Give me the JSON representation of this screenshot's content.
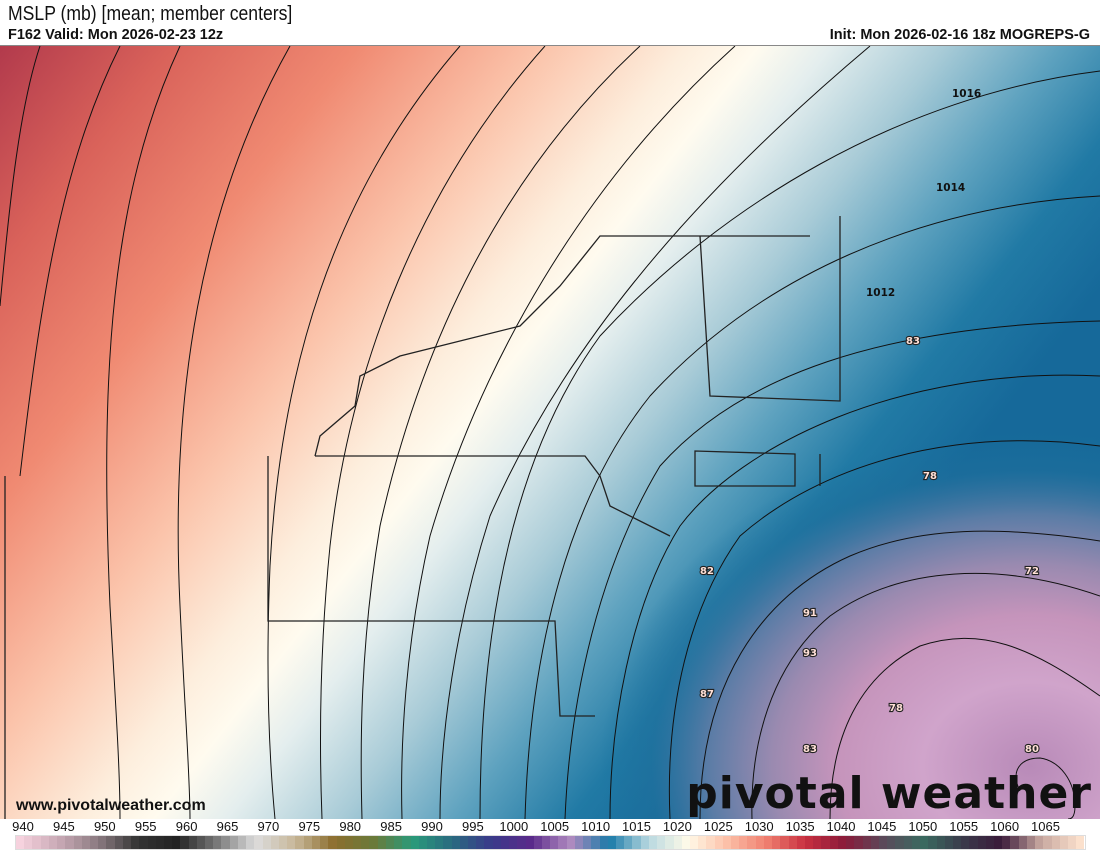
{
  "header": {
    "title": "MSLP (mb) [mean; member centers]",
    "valid": "F162 Valid: Mon 2026-02-23 12z",
    "init": "Init: Mon 2026-02-16 18z MOGREPS-G"
  },
  "map": {
    "isobar_labels": [
      "1016",
      "1014",
      "1012"
    ],
    "center_labels": [
      "83",
      "78",
      "82",
      "72",
      "91",
      "93",
      "87",
      "78",
      "83",
      "80"
    ]
  },
  "watermark": {
    "site": "www.pivotalweather.com",
    "brand": "pivotal weather"
  },
  "colorbar": {
    "ticks": [
      "940",
      "945",
      "950",
      "955",
      "960",
      "965",
      "970",
      "975",
      "980",
      "985",
      "990",
      "995",
      "1000",
      "1005",
      "1010",
      "1015",
      "1020",
      "1025",
      "1030",
      "1035",
      "1040",
      "1045",
      "1050",
      "1055",
      "1060",
      "1065"
    ],
    "color_stops": [
      "#f6d2de",
      "#c8a8b4",
      "#8a7a80",
      "#333333",
      "#222222",
      "#777777",
      "#dcdcdc",
      "#c8b89a",
      "#8c6e2e",
      "#6a7a3a",
      "#2a9a7a",
      "#2a6a80",
      "#3a3a8a",
      "#5a2a8a",
      "#b08ac0",
      "#1a7aa8",
      "#b8d8e0",
      "#fffbe8",
      "#fcc0a8",
      "#f08070",
      "#c83040",
      "#8a1a3a",
      "#5a4a5a",
      "#3a6a60",
      "#3a3a4a",
      "#3a1a3a",
      "#c8a8a0",
      "#fbe0cc"
    ]
  }
}
